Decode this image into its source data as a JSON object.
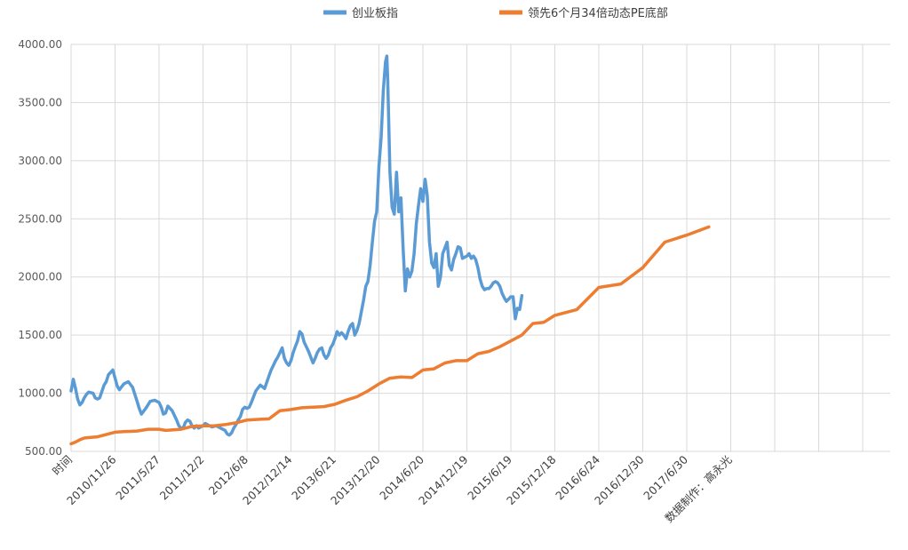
{
  "chart_data": {
    "type": "line",
    "title": "",
    "xlabel": "",
    "ylabel": "",
    "ylim": [
      500,
      4000
    ],
    "y_ticks": [
      "500.00",
      "1000.00",
      "1500.00",
      "2000.00",
      "2500.00",
      "3000.00",
      "3500.00",
      "4000.00"
    ],
    "x_tick_labels": [
      "时间",
      "2010/11/26",
      "2011/5/27",
      "2011/12/2",
      "2012/6/8",
      "2012/12/14",
      "2013/6/21",
      "2013/12/20",
      "2014/6/20",
      "2014/12/19",
      "2015/6/19",
      "2015/12/18",
      "2016/6/24",
      "2016/12/30",
      "2017/6/30",
      "数据制作：高永光"
    ],
    "grid": "on",
    "legend_position": "top",
    "series": [
      {
        "name": "创业板指",
        "color": "#5b9bd5",
        "points": [
          [
            0,
            1020
          ],
          [
            0.05,
            1120
          ],
          [
            0.1,
            1040
          ],
          [
            0.15,
            950
          ],
          [
            0.2,
            900
          ],
          [
            0.25,
            920
          ],
          [
            0.3,
            960
          ],
          [
            0.35,
            990
          ],
          [
            0.4,
            1010
          ],
          [
            0.5,
            1000
          ],
          [
            0.55,
            960
          ],
          [
            0.6,
            950
          ],
          [
            0.65,
            960
          ],
          [
            0.75,
            1070
          ],
          [
            0.8,
            1100
          ],
          [
            0.85,
            1160
          ],
          [
            0.9,
            1180
          ],
          [
            0.95,
            1200
          ],
          [
            1.0,
            1130
          ],
          [
            1.05,
            1060
          ],
          [
            1.1,
            1030
          ],
          [
            1.2,
            1080
          ],
          [
            1.3,
            1100
          ],
          [
            1.4,
            1050
          ],
          [
            1.5,
            930
          ],
          [
            1.55,
            870
          ],
          [
            1.6,
            820
          ],
          [
            1.7,
            870
          ],
          [
            1.8,
            930
          ],
          [
            1.9,
            940
          ],
          [
            2.0,
            920
          ],
          [
            2.05,
            880
          ],
          [
            2.1,
            820
          ],
          [
            2.15,
            830
          ],
          [
            2.2,
            890
          ],
          [
            2.3,
            850
          ],
          [
            2.4,
            770
          ],
          [
            2.45,
            720
          ],
          [
            2.5,
            700
          ],
          [
            2.55,
            700
          ],
          [
            2.6,
            750
          ],
          [
            2.65,
            770
          ],
          [
            2.7,
            760
          ],
          [
            2.75,
            720
          ],
          [
            2.8,
            700
          ],
          [
            2.85,
            720
          ],
          [
            2.9,
            700
          ],
          [
            3.0,
            720
          ],
          [
            3.05,
            740
          ],
          [
            3.1,
            730
          ],
          [
            3.2,
            710
          ],
          [
            3.3,
            720
          ],
          [
            3.4,
            700
          ],
          [
            3.5,
            680
          ],
          [
            3.55,
            650
          ],
          [
            3.6,
            640
          ],
          [
            3.65,
            660
          ],
          [
            3.7,
            700
          ],
          [
            3.75,
            730
          ],
          [
            3.8,
            770
          ],
          [
            3.85,
            800
          ],
          [
            3.9,
            860
          ],
          [
            3.95,
            880
          ],
          [
            4.0,
            870
          ],
          [
            4.05,
            880
          ],
          [
            4.1,
            920
          ],
          [
            4.2,
            1020
          ],
          [
            4.3,
            1070
          ],
          [
            4.4,
            1040
          ],
          [
            4.5,
            1150
          ],
          [
            4.55,
            1200
          ],
          [
            4.6,
            1240
          ],
          [
            4.65,
            1280
          ],
          [
            4.7,
            1310
          ],
          [
            4.75,
            1350
          ],
          [
            4.8,
            1390
          ],
          [
            4.85,
            1300
          ],
          [
            4.9,
            1260
          ],
          [
            4.95,
            1240
          ],
          [
            5.0,
            1280
          ],
          [
            5.05,
            1350
          ],
          [
            5.1,
            1400
          ],
          [
            5.15,
            1450
          ],
          [
            5.2,
            1530
          ],
          [
            5.25,
            1510
          ],
          [
            5.3,
            1440
          ],
          [
            5.4,
            1360
          ],
          [
            5.45,
            1310
          ],
          [
            5.5,
            1260
          ],
          [
            5.55,
            1300
          ],
          [
            5.6,
            1350
          ],
          [
            5.65,
            1380
          ],
          [
            5.7,
            1390
          ],
          [
            5.75,
            1330
          ],
          [
            5.8,
            1300
          ],
          [
            5.85,
            1330
          ],
          [
            5.9,
            1390
          ],
          [
            5.95,
            1420
          ],
          [
            6.0,
            1470
          ],
          [
            6.05,
            1530
          ],
          [
            6.1,
            1500
          ],
          [
            6.15,
            1520
          ],
          [
            6.2,
            1500
          ],
          [
            6.25,
            1470
          ],
          [
            6.3,
            1530
          ],
          [
            6.35,
            1580
          ],
          [
            6.4,
            1600
          ],
          [
            6.45,
            1500
          ],
          [
            6.5,
            1540
          ],
          [
            6.55,
            1600
          ],
          [
            6.6,
            1700
          ],
          [
            6.65,
            1800
          ],
          [
            6.7,
            1920
          ],
          [
            6.75,
            1960
          ],
          [
            6.8,
            2100
          ],
          [
            6.85,
            2300
          ],
          [
            6.9,
            2480
          ],
          [
            6.95,
            2560
          ],
          [
            7.0,
            2950
          ],
          [
            7.05,
            3200
          ],
          [
            7.1,
            3600
          ],
          [
            7.15,
            3850
          ],
          [
            7.18,
            3900
          ],
          [
            7.2,
            3700
          ],
          [
            7.25,
            2900
          ],
          [
            7.3,
            2600
          ],
          [
            7.35,
            2540
          ],
          [
            7.4,
            2900
          ],
          [
            7.45,
            2560
          ],
          [
            7.5,
            2680
          ],
          [
            7.55,
            2250
          ],
          [
            7.6,
            1880
          ],
          [
            7.65,
            2070
          ],
          [
            7.7,
            2000
          ],
          [
            7.75,
            2050
          ],
          [
            7.8,
            2200
          ],
          [
            7.85,
            2460
          ],
          [
            7.9,
            2620
          ],
          [
            7.95,
            2760
          ],
          [
            8.0,
            2650
          ],
          [
            8.05,
            2840
          ],
          [
            8.1,
            2700
          ],
          [
            8.15,
            2300
          ],
          [
            8.2,
            2120
          ],
          [
            8.25,
            2080
          ],
          [
            8.3,
            2200
          ],
          [
            8.35,
            1920
          ],
          [
            8.4,
            2000
          ],
          [
            8.45,
            2200
          ],
          [
            8.5,
            2250
          ],
          [
            8.55,
            2300
          ],
          [
            8.6,
            2100
          ],
          [
            8.65,
            2060
          ],
          [
            8.7,
            2150
          ],
          [
            8.75,
            2200
          ],
          [
            8.8,
            2260
          ],
          [
            8.85,
            2250
          ],
          [
            8.9,
            2160
          ],
          [
            9.0,
            2180
          ],
          [
            9.05,
            2200
          ],
          [
            9.1,
            2160
          ],
          [
            9.15,
            2180
          ],
          [
            9.2,
            2150
          ],
          [
            9.25,
            2080
          ],
          [
            9.3,
            1980
          ],
          [
            9.35,
            1920
          ],
          [
            9.4,
            1890
          ],
          [
            9.45,
            1900
          ],
          [
            9.5,
            1900
          ],
          [
            9.55,
            1920
          ],
          [
            9.6,
            1950
          ],
          [
            9.65,
            1960
          ],
          [
            9.7,
            1950
          ],
          [
            9.75,
            1920
          ],
          [
            9.8,
            1860
          ],
          [
            9.85,
            1820
          ],
          [
            9.9,
            1790
          ],
          [
            9.95,
            1810
          ],
          [
            10.0,
            1830
          ],
          [
            10.05,
            1830
          ],
          [
            10.1,
            1640
          ],
          [
            10.15,
            1730
          ],
          [
            10.2,
            1720
          ],
          [
            10.25,
            1840
          ]
        ]
      },
      {
        "name": "领先6个月34倍动态PE底部",
        "color": "#ed7d31",
        "points": [
          [
            0,
            565
          ],
          [
            0.1,
            580
          ],
          [
            0.2,
            600
          ],
          [
            0.3,
            615
          ],
          [
            0.45,
            620
          ],
          [
            0.6,
            625
          ],
          [
            0.75,
            640
          ],
          [
            0.9,
            655
          ],
          [
            1.0,
            665
          ],
          [
            1.2,
            670
          ],
          [
            1.5,
            675
          ],
          [
            1.75,
            690
          ],
          [
            2.0,
            690
          ],
          [
            2.15,
            680
          ],
          [
            2.5,
            690
          ],
          [
            2.75,
            715
          ],
          [
            3.0,
            720
          ],
          [
            3.25,
            720
          ],
          [
            3.5,
            730
          ],
          [
            3.75,
            745
          ],
          [
            4.0,
            770
          ],
          [
            4.25,
            775
          ],
          [
            4.5,
            780
          ],
          [
            4.75,
            850
          ],
          [
            5.0,
            860
          ],
          [
            5.25,
            875
          ],
          [
            5.5,
            880
          ],
          [
            5.75,
            885
          ],
          [
            6.0,
            905
          ],
          [
            6.25,
            940
          ],
          [
            6.5,
            970
          ],
          [
            6.75,
            1020
          ],
          [
            7.0,
            1080
          ],
          [
            7.25,
            1130
          ],
          [
            7.5,
            1140
          ],
          [
            7.75,
            1135
          ],
          [
            8.0,
            1200
          ],
          [
            8.25,
            1210
          ],
          [
            8.5,
            1260
          ],
          [
            8.75,
            1280
          ],
          [
            9.0,
            1280
          ],
          [
            9.25,
            1340
          ],
          [
            9.5,
            1360
          ],
          [
            9.75,
            1400
          ],
          [
            10.0,
            1450
          ],
          [
            10.25,
            1500
          ],
          [
            10.5,
            1600
          ],
          [
            10.75,
            1610
          ],
          [
            11.0,
            1670
          ],
          [
            11.5,
            1720
          ],
          [
            12.0,
            1910
          ],
          [
            12.5,
            1940
          ],
          [
            13.0,
            2080
          ],
          [
            13.5,
            2300
          ],
          [
            14.0,
            2360
          ],
          [
            14.5,
            2430
          ]
        ]
      }
    ]
  }
}
